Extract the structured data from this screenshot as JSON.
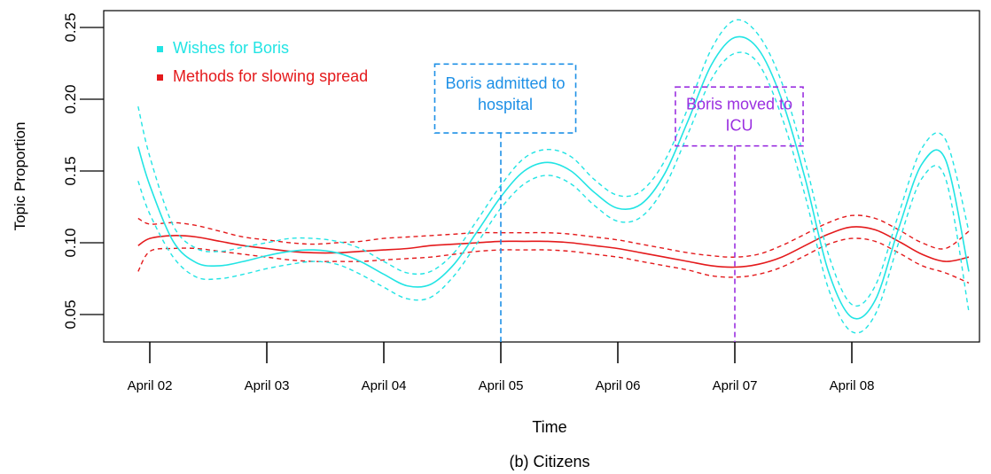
{
  "chart_data": {
    "type": "line",
    "xlabel": "Time",
    "ylabel": "Topic Proportion",
    "caption": "(b) Citizens",
    "xlim": [
      -0.4,
      7.1
    ],
    "ylim": [
      0.03,
      0.265
    ],
    "x_ticks": [
      {
        "value": 0,
        "label": "April 02"
      },
      {
        "value": 1,
        "label": "April 03"
      },
      {
        "value": 2,
        "label": "April 04"
      },
      {
        "value": 3,
        "label": "April 05"
      },
      {
        "value": 4,
        "label": "April 06"
      },
      {
        "value": 5,
        "label": "April 07"
      },
      {
        "value": 6,
        "label": "April 08"
      }
    ],
    "y_ticks": [
      {
        "value": 0.05,
        "label": "0.05"
      },
      {
        "value": 0.1,
        "label": "0.10"
      },
      {
        "value": 0.15,
        "label": "0.15"
      },
      {
        "value": 0.2,
        "label": "0.20"
      },
      {
        "value": 0.25,
        "label": "0.25"
      }
    ],
    "legend": {
      "position": "top-left"
    },
    "series": [
      {
        "name": "Wishes for Boris",
        "color": "#22e4e4",
        "x": [
          -0.1,
          0.0,
          0.2,
          0.4,
          0.6,
          0.8,
          1.0,
          1.2,
          1.4,
          1.6,
          1.8,
          2.0,
          2.2,
          2.4,
          2.6,
          2.8,
          3.0,
          3.2,
          3.4,
          3.6,
          3.8,
          4.0,
          4.2,
          4.4,
          4.6,
          4.8,
          5.0,
          5.2,
          5.4,
          5.6,
          5.8,
          6.0,
          6.2,
          6.4,
          6.6,
          6.8,
          7.0
        ],
        "mean": [
          0.167,
          0.14,
          0.101,
          0.086,
          0.084,
          0.087,
          0.091,
          0.094,
          0.095,
          0.093,
          0.087,
          0.078,
          0.07,
          0.071,
          0.085,
          0.108,
          0.132,
          0.15,
          0.156,
          0.15,
          0.135,
          0.124,
          0.127,
          0.148,
          0.185,
          0.224,
          0.243,
          0.235,
          0.2,
          0.145,
          0.08,
          0.048,
          0.06,
          0.11,
          0.155,
          0.158,
          0.08
        ],
        "upper": [
          0.195,
          0.16,
          0.112,
          0.096,
          0.094,
          0.097,
          0.1,
          0.103,
          0.103,
          0.101,
          0.096,
          0.087,
          0.079,
          0.08,
          0.093,
          0.116,
          0.14,
          0.159,
          0.165,
          0.16,
          0.144,
          0.133,
          0.136,
          0.157,
          0.194,
          0.235,
          0.255,
          0.245,
          0.212,
          0.157,
          0.092,
          0.057,
          0.07,
          0.12,
          0.166,
          0.172,
          0.108
        ],
        "lower": [
          0.143,
          0.12,
          0.09,
          0.076,
          0.075,
          0.078,
          0.082,
          0.085,
          0.087,
          0.085,
          0.078,
          0.069,
          0.061,
          0.062,
          0.077,
          0.1,
          0.124,
          0.141,
          0.147,
          0.141,
          0.126,
          0.115,
          0.118,
          0.139,
          0.176,
          0.214,
          0.232,
          0.225,
          0.188,
          0.133,
          0.068,
          0.038,
          0.05,
          0.1,
          0.145,
          0.145,
          0.052
        ]
      },
      {
        "name": "Methods for slowing spread",
        "color": "#e41a1c",
        "x": [
          -0.1,
          0.0,
          0.2,
          0.4,
          0.6,
          0.8,
          1.0,
          1.2,
          1.4,
          1.6,
          1.8,
          2.0,
          2.2,
          2.4,
          2.6,
          2.8,
          3.0,
          3.2,
          3.4,
          3.6,
          3.8,
          4.0,
          4.2,
          4.4,
          4.6,
          4.8,
          5.0,
          5.2,
          5.4,
          5.6,
          5.8,
          6.0,
          6.2,
          6.4,
          6.6,
          6.8,
          7.0
        ],
        "mean": [
          0.098,
          0.103,
          0.105,
          0.104,
          0.101,
          0.098,
          0.096,
          0.094,
          0.093,
          0.093,
          0.094,
          0.095,
          0.096,
          0.098,
          0.099,
          0.1,
          0.101,
          0.101,
          0.101,
          0.1,
          0.098,
          0.096,
          0.093,
          0.09,
          0.087,
          0.084,
          0.083,
          0.085,
          0.09,
          0.098,
          0.106,
          0.111,
          0.109,
          0.101,
          0.092,
          0.087,
          0.09
        ],
        "upper": [
          0.117,
          0.113,
          0.114,
          0.112,
          0.108,
          0.104,
          0.102,
          0.1,
          0.099,
          0.1,
          0.101,
          0.103,
          0.104,
          0.105,
          0.106,
          0.107,
          0.107,
          0.107,
          0.107,
          0.106,
          0.104,
          0.102,
          0.099,
          0.096,
          0.093,
          0.091,
          0.09,
          0.092,
          0.098,
          0.106,
          0.114,
          0.119,
          0.117,
          0.109,
          0.1,
          0.096,
          0.108
        ],
        "lower": [
          0.08,
          0.094,
          0.096,
          0.096,
          0.094,
          0.092,
          0.09,
          0.088,
          0.087,
          0.087,
          0.087,
          0.088,
          0.089,
          0.09,
          0.092,
          0.094,
          0.095,
          0.095,
          0.095,
          0.094,
          0.092,
          0.09,
          0.087,
          0.084,
          0.081,
          0.077,
          0.076,
          0.078,
          0.083,
          0.091,
          0.099,
          0.103,
          0.101,
          0.093,
          0.084,
          0.079,
          0.072
        ]
      }
    ],
    "annotations": [
      {
        "name": "admitted",
        "lines": [
          "Boris admitted to",
          "hospital"
        ],
        "x": 3.0,
        "color": "#1e90e6",
        "text_y": 0.2,
        "box_top_y": 0.2245,
        "box_bottom_y": 0.1765
      },
      {
        "name": "icu",
        "lines": [
          "Boris moved to",
          "ICU"
        ],
        "x": 5.0,
        "color": "#9b30e0",
        "text_y": 0.1855,
        "box_top_y": 0.2085,
        "box_bottom_y": 0.1675
      }
    ]
  }
}
